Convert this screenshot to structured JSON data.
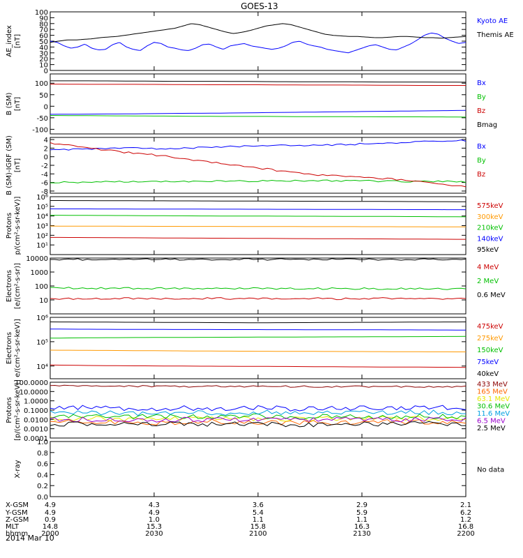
{
  "figure": {
    "title": "GOES-13",
    "date_label": "2014 Mar 10",
    "x_range": [
      "2000",
      "2200"
    ]
  },
  "chart_data": [
    {
      "type": "line",
      "id": "ae",
      "ylabel": [
        "AE_index",
        "[nT]"
      ],
      "ylim": [
        0,
        100
      ],
      "yscale": "linear",
      "yticks": [
        "0",
        "10",
        "20",
        "30",
        "40",
        "50",
        "60",
        "70",
        "80",
        "90",
        "100"
      ],
      "series": [
        {
          "name": "Kyoto AE",
          "color": "#0000ff",
          "values": [
            50,
            48,
            42,
            38,
            40,
            45,
            38,
            35,
            36,
            44,
            48,
            40,
            36,
            34,
            42,
            48,
            46,
            40,
            38,
            35,
            34,
            38,
            44,
            45,
            40,
            36,
            42,
            44,
            46,
            42,
            40,
            38,
            36,
            38,
            42,
            48,
            50,
            45,
            42,
            40,
            36,
            34,
            32,
            30,
            34,
            38,
            42,
            44,
            40,
            36,
            35,
            40,
            45,
            52,
            60,
            64,
            62,
            55,
            50,
            46,
            48
          ]
        },
        {
          "name": "Themis AE",
          "color": "#000000",
          "values": [
            48,
            50,
            52,
            52,
            53,
            54,
            56,
            57,
            58,
            60,
            62,
            64,
            66,
            68,
            70,
            72,
            76,
            80,
            78,
            74,
            70,
            66,
            63,
            65,
            68,
            72,
            76,
            78,
            80,
            78,
            74,
            70,
            66,
            62,
            60,
            59,
            58,
            58,
            57,
            56,
            56,
            57,
            58,
            58,
            57,
            56,
            56,
            55,
            56,
            57,
            58
          ]
        }
      ]
    },
    {
      "type": "line",
      "id": "bsm",
      "ylabel": [
        "B (SM)",
        "[nT]"
      ],
      "ylim": [
        -120,
        140
      ],
      "yscale": "linear",
      "yticks": [
        "-100",
        "-50",
        "0",
        "50",
        "100"
      ],
      "series": [
        {
          "name": "Bx",
          "color": "#0000ff",
          "values": [
            -35,
            -34,
            -33,
            -31,
            -30,
            -28,
            -26,
            -24,
            -22,
            -20,
            -18
          ]
        },
        {
          "name": "By",
          "color": "#00c000",
          "values": [
            -40,
            -41,
            -42,
            -43,
            -44,
            -44,
            -45,
            -45,
            -46,
            -46,
            -47
          ]
        },
        {
          "name": "Bz",
          "color": "#cc0000",
          "values": [
            96,
            95,
            95,
            94,
            93,
            93,
            92,
            92,
            91,
            90,
            90
          ]
        },
        {
          "name": "Bmag",
          "color": "#000000",
          "values": [
            110,
            110,
            109,
            108,
            108,
            107,
            106,
            106,
            105,
            105,
            104
          ]
        }
      ]
    },
    {
      "type": "line",
      "id": "bigrf",
      "ylabel": [
        "B (SM)-IGRF (SM)",
        "[nT]"
      ],
      "ylim": [
        -8.5,
        4.5
      ],
      "yscale": "linear",
      "yticks": [
        "-8",
        "-6",
        "-4",
        "-2",
        "0",
        "2",
        "4"
      ],
      "series": [
        {
          "name": "Bx",
          "color": "#0000ff",
          "values": [
            1.5,
            1.8,
            2.0,
            1.9,
            2.1,
            2.4,
            2.6,
            2.7,
            2.9,
            3.2,
            3.5,
            3.8
          ]
        },
        {
          "name": "By",
          "color": "#00c000",
          "values": [
            -6.0,
            -5.9,
            -5.8,
            -5.8,
            -5.7,
            -5.7,
            -5.6,
            -5.6,
            -5.6,
            -5.7,
            -5.8,
            -5.8
          ]
        },
        {
          "name": "Bz",
          "color": "#cc0000",
          "values": [
            3.2,
            2.0,
            1.0,
            0.2,
            -1.0,
            -2.0,
            -3.2,
            -4.2,
            -4.6,
            -5.2,
            -6.0,
            -7.0
          ]
        }
      ]
    },
    {
      "type": "line",
      "id": "protons_mag",
      "ylabel": [
        "Protons",
        "p/(cm²-s-sr-keV)]"
      ],
      "ylim": [
        1,
        1000000
      ],
      "yscale": "log",
      "yticks": [
        "10¹",
        "10²",
        "10³",
        "10⁴",
        "10⁵",
        "10⁶"
      ],
      "series": [
        {
          "name": "575keV",
          "color": "#cc0000",
          "values": [
            60,
            58,
            55,
            52,
            50,
            48,
            45,
            44,
            42,
            40,
            38
          ]
        },
        {
          "name": "300keV",
          "color": "#ff9900",
          "values": [
            900,
            880,
            860,
            840,
            830,
            820,
            800,
            790,
            780,
            760,
            740
          ]
        },
        {
          "name": "210keV",
          "color": "#00c000",
          "values": [
            12000,
            11500,
            11000,
            10500,
            10000,
            9800,
            9500,
            9200,
            9000,
            8600,
            8200
          ]
        },
        {
          "name": "140keV",
          "color": "#0000ff",
          "values": [
            55000,
            54000,
            53000,
            52000,
            51000,
            50000,
            49000,
            48000,
            47000,
            46000,
            45000
          ]
        },
        {
          "name": "95keV",
          "color": "#000000",
          "values": [
            400000,
            390000,
            380000,
            370000,
            360000,
            350000,
            340000,
            330000,
            320000,
            310000,
            300000
          ]
        }
      ]
    },
    {
      "type": "line",
      "id": "electrons_epead",
      "ylabel": [
        "Electrons",
        "[e/(cm²-s-sr)]"
      ],
      "ylim": [
        1,
        10000
      ],
      "yscale": "log",
      "yticks": [
        "10",
        "100",
        "1000",
        "10000"
      ],
      "series": [
        {
          "name": "4 MeV",
          "color": "#cc0000",
          "values": [
            13,
            12,
            13,
            12,
            13,
            12,
            13,
            12,
            13,
            12,
            13
          ]
        },
        {
          "name": "2 MeV",
          "color": "#00c000",
          "values": [
            72,
            70,
            68,
            68,
            67,
            66,
            65,
            65,
            64,
            63,
            62
          ]
        },
        {
          "name": "0.6 MeV",
          "color": "#000000",
          "values": [
            8000,
            8000,
            8000,
            8000,
            8000,
            8000,
            8000,
            8000,
            8000,
            8000,
            8000
          ]
        }
      ]
    },
    {
      "type": "line",
      "id": "electrons_mag",
      "ylabel": [
        "Electrons",
        "e/(cm²-s-sr-keV)]"
      ],
      "ylim": [
        3000,
        1000000
      ],
      "yscale": "log",
      "yticks": [
        "10⁴",
        "10⁵",
        "10⁶"
      ],
      "series": [
        {
          "name": "475keV",
          "color": "#cc0000",
          "values": [
            11000,
            10500,
            10200,
            10000,
            9800,
            9700,
            9500,
            9300,
            9100,
            9000,
            8800
          ]
        },
        {
          "name": "275keV",
          "color": "#ff9900",
          "values": [
            45000,
            44000,
            43000,
            42000,
            41000,
            40500,
            40000,
            39500,
            39000,
            38500,
            38000
          ]
        },
        {
          "name": "150keV",
          "color": "#00c000",
          "values": [
            140000,
            145000,
            148000,
            150000,
            152000,
            154000,
            156000,
            158000,
            160000,
            162000,
            165000
          ]
        },
        {
          "name": "75keV",
          "color": "#0000ff",
          "values": [
            330000,
            325000,
            320000,
            318000,
            316000,
            314000,
            312000,
            310000,
            308000,
            305000,
            300000
          ]
        },
        {
          "name": "40keV",
          "color": "#000000",
          "values": [
            650000,
            640000,
            630000,
            620000,
            610000,
            600000,
            610000,
            620000,
            630000,
            640000,
            650000
          ]
        }
      ]
    },
    {
      "type": "line",
      "id": "protons_epead",
      "ylabel": [
        "Protons",
        "[p/(cm²-s-sr-keV)]"
      ],
      "ylim": [
        0.0001,
        100
      ],
      "yscale": "log",
      "yticks": [
        "0.0001",
        "0.0010",
        "0.0100",
        "0.1000",
        "1.0000",
        "10.0000",
        "100.0000"
      ],
      "series": [
        {
          "name": "433 MeV",
          "color": "#8b0000",
          "values": [
            40,
            38,
            37,
            36,
            36,
            35,
            35,
            34,
            34,
            33,
            33
          ]
        },
        {
          "name": "165 MeV",
          "color": "#ff6600",
          "values": [
            0.005,
            0.006,
            0.004,
            0.005,
            0.006,
            0.005,
            0.004,
            0.005,
            0.006,
            0.005,
            0.005
          ]
        },
        {
          "name": "63.1 MeV",
          "color": "#e6e600",
          "values": [
            0.012,
            0.013,
            0.011,
            0.012,
            0.013,
            0.012,
            0.011,
            0.012,
            0.013,
            0.012,
            0.012
          ]
        },
        {
          "name": "30.6 MeV",
          "color": "#00c000",
          "values": [
            0.02,
            0.022,
            0.019,
            0.021,
            0.02,
            0.022,
            0.019,
            0.021,
            0.02,
            0.022,
            0.02
          ]
        },
        {
          "name": "11.6 MeV",
          "color": "#00a0e0",
          "values": [
            0.05,
            0.06,
            0.045,
            0.055,
            0.05,
            0.06,
            0.045,
            0.055,
            0.05,
            0.06,
            0.05
          ]
        },
        {
          "name": "6.5 MeV",
          "color": "#9900cc",
          "values": [
            0.009,
            0.01,
            0.008,
            0.0095,
            0.009,
            0.01,
            0.008,
            0.0095,
            0.009,
            0.01,
            0.009
          ]
        },
        {
          "name": "2.5 MeV",
          "color": "#000000",
          "values": [
            0.003,
            0.0035,
            0.0028,
            0.0032,
            0.003,
            0.0034,
            0.0028,
            0.0032,
            0.003,
            0.0034,
            0.003
          ]
        },
        {
          "name": "",
          "color": "#0000ff",
          "values": [
            0.15,
            0.2,
            0.12,
            0.18,
            0.15,
            0.2,
            0.12,
            0.18,
            0.15,
            0.2,
            0.15
          ]
        }
      ]
    },
    {
      "type": "line",
      "id": "xray",
      "ylabel": [
        "X-ray"
      ],
      "ylim": [
        0,
        1
      ],
      "yscale": "linear",
      "yticks": [
        "0.0",
        "0.2",
        "0.4",
        "0.6",
        "0.8",
        "1.0"
      ],
      "note": "No data",
      "series": []
    }
  ],
  "ephemeris": {
    "labels": [
      "X-GSM",
      "Y-GSM",
      "Z-GSM",
      "MLT",
      "hhmm"
    ],
    "columns": [
      [
        "4.9",
        "4.9",
        "0.9",
        "14.8",
        "2000"
      ],
      [
        "4.3",
        "4.9",
        "1.0",
        "15.3",
        "2030"
      ],
      [
        "3.6",
        "5.4",
        "1.1",
        "15.8",
        "2100"
      ],
      [
        "2.9",
        "5.9",
        "1.1",
        "16.3",
        "2130"
      ],
      [
        "2.1",
        "6.2",
        "1.2",
        "16.8",
        "2200"
      ]
    ]
  }
}
